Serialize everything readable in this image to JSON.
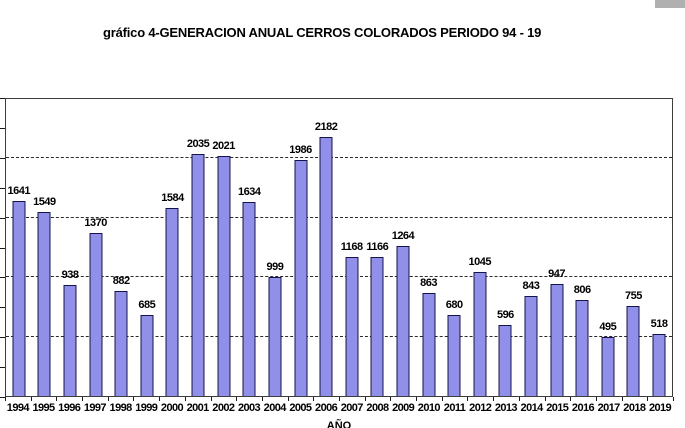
{
  "page": {
    "corner_box_color": "#b0b0b0"
  },
  "chart_data": {
    "type": "bar",
    "title": "gráfico 4-GENERACION ANUAL CERROS COLORADOS PERIODO 94 - 19",
    "xlabel": "AÑO",
    "ylabel": "",
    "categories": [
      "1994",
      "1995",
      "1996",
      "1997",
      "1998",
      "1999",
      "2000",
      "2001",
      "2002",
      "2003",
      "2004",
      "2005",
      "2006",
      "2007",
      "2008",
      "2009",
      "2010",
      "2011",
      "2012",
      "2013",
      "2014",
      "2015",
      "2016",
      "2017",
      "2018",
      "2019"
    ],
    "values": [
      1641,
      1549,
      938,
      1370,
      882,
      685,
      1584,
      2035,
      2021,
      1634,
      999,
      1986,
      2182,
      1168,
      1166,
      1264,
      863,
      680,
      1045,
      596,
      843,
      947,
      806,
      495,
      755,
      518
    ],
    "ylim": [
      0,
      2500
    ],
    "gridline_interval": 500,
    "y_tick_interval": 250,
    "grid": true,
    "y_axis_value_labels_visible": false,
    "data_labels_position": "outside-end",
    "legend": "none",
    "colors": {
      "bar_fill": "#9090e8",
      "bar_border": "#14144a",
      "gridline": "#2a2a2a",
      "axis": "#1c1c1c"
    }
  }
}
